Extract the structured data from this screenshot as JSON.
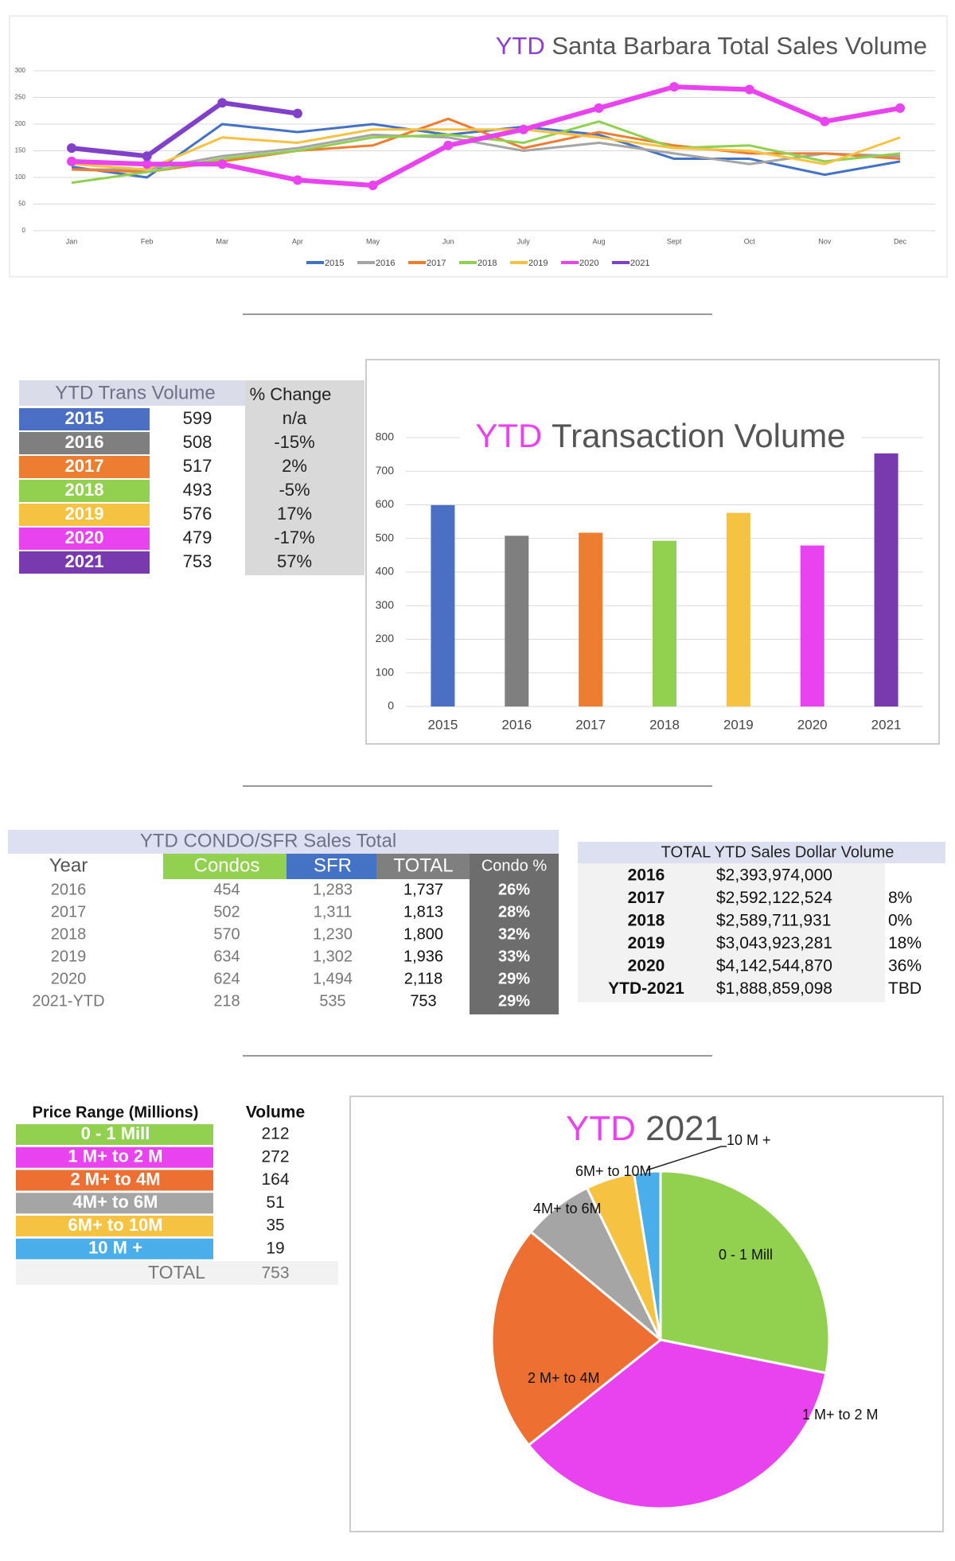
{
  "chart_data": [
    {
      "type": "line",
      "title_highlight": "YTD",
      "title": "Santa Barbara Total Sales Volume",
      "categories": [
        "Jan",
        "Feb",
        "Mar",
        "Apr",
        "May",
        "Jun",
        "July",
        "Aug",
        "Sept",
        "Oct",
        "Nov",
        "Dec"
      ],
      "ylim": [
        0,
        300
      ],
      "yticks": [
        0,
        50,
        100,
        150,
        200,
        250,
        300
      ],
      "grid": true,
      "legend": "bottom",
      "series": [
        {
          "name": "2015",
          "color": "#4472c4",
          "values": [
            120,
            100,
            200,
            185,
            200,
            180,
            195,
            180,
            135,
            135,
            105,
            130
          ]
        },
        {
          "name": "2016",
          "color": "#a5a5a5",
          "values": [
            115,
            115,
            140,
            155,
            180,
            175,
            150,
            165,
            145,
            125,
            145,
            140
          ]
        },
        {
          "name": "2017",
          "color": "#ed7d31",
          "values": [
            115,
            110,
            130,
            150,
            160,
            210,
            155,
            185,
            160,
            145,
            145,
            135
          ]
        },
        {
          "name": "2018",
          "color": "#8fd14f",
          "values": [
            90,
            110,
            135,
            150,
            175,
            180,
            165,
            205,
            155,
            160,
            130,
            145
          ]
        },
        {
          "name": "2019",
          "color": "#f5c242",
          "values": [
            125,
            115,
            175,
            165,
            190,
            190,
            190,
            175,
            155,
            150,
            125,
            175
          ]
        },
        {
          "name": "2020",
          "color": "#e843ee",
          "markers": true,
          "values": [
            130,
            125,
            125,
            95,
            85,
            160,
            190,
            230,
            270,
            265,
            205,
            230
          ]
        },
        {
          "name": "2021",
          "color": "#8040c8",
          "markers": true,
          "values": [
            155,
            140,
            240,
            220,
            null,
            null,
            null,
            null,
            null,
            null,
            null,
            null
          ]
        }
      ]
    },
    {
      "type": "bar",
      "title_highlight": "YTD",
      "title": "Transaction Volume",
      "categories": [
        "2015",
        "2016",
        "2017",
        "2018",
        "2019",
        "2020",
        "2021"
      ],
      "values": [
        599,
        508,
        517,
        493,
        576,
        479,
        753
      ],
      "colors": [
        "#4a6fc4",
        "#7f7f7f",
        "#ed7d31",
        "#92d050",
        "#f5c242",
        "#e843ee",
        "#7a3aaf"
      ],
      "ylim": [
        0,
        800
      ],
      "yticks": [
        0,
        100,
        200,
        300,
        400,
        500,
        600,
        700,
        800
      ],
      "grid": true
    },
    {
      "type": "pie",
      "title_highlight": "YTD",
      "title": "2021",
      "labels": [
        "0 - 1 Mill",
        "1 M+ to 2 M",
        "2 M+ to 4M",
        "4M+ to 6M",
        "6M+ to 10M",
        "10 M +"
      ],
      "values": [
        212,
        272,
        164,
        51,
        35,
        19
      ],
      "colors": [
        "#92d050",
        "#e843ee",
        "#ed7032",
        "#a5a5a5",
        "#f5c242",
        "#4aaeea"
      ]
    }
  ],
  "trans_table": {
    "header": [
      "YTD Trans Volume",
      "% Change"
    ],
    "changes": [
      "n/a",
      "-15%",
      "2%",
      "-5%",
      "17%",
      "-17%",
      "57%"
    ]
  },
  "condo_table": {
    "title": "YTD CONDO/SFR Sales Total",
    "header": [
      "Year",
      "Condos",
      "SFR",
      "TOTAL",
      "Condo %"
    ],
    "rows": [
      [
        "2016",
        "454",
        "1,283",
        "1,737",
        "26%"
      ],
      [
        "2017",
        "502",
        "1,311",
        "1,813",
        "28%"
      ],
      [
        "2018",
        "570",
        "1,230",
        "1,800",
        "32%"
      ],
      [
        "2019",
        "634",
        "1,302",
        "1,936",
        "33%"
      ],
      [
        "2020",
        "624",
        "1,494",
        "2,118",
        "29%"
      ],
      [
        "2021-YTD",
        "218",
        "535",
        "753",
        "29%"
      ]
    ]
  },
  "dollar_table": {
    "title": "TOTAL YTD Sales Dollar Volume",
    "rows": [
      [
        "2016",
        "$2,393,974,000"
      ],
      [
        "2017",
        "$2,592,122,524",
        "8%"
      ],
      [
        "2018",
        "$2,589,711,931",
        "0%"
      ],
      [
        "2019",
        "$3,043,923,281",
        "18%"
      ],
      [
        "2020",
        "$4,142,544,870",
        "36%"
      ],
      [
        "YTD-2021",
        "$1,888,859,098",
        "TBD"
      ]
    ]
  },
  "price_table": {
    "header": [
      "Price Range (Millions)",
      "Volume"
    ],
    "total": [
      "TOTAL",
      "753"
    ]
  }
}
